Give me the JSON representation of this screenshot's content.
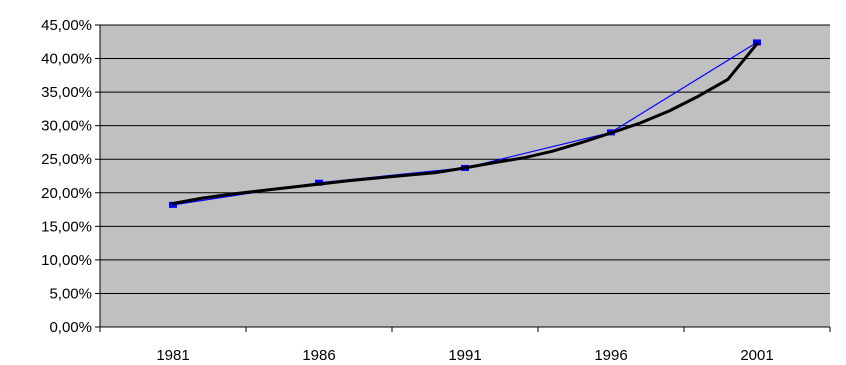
{
  "chart_data": {
    "type": "line",
    "title": "",
    "xlabel": "",
    "ylabel": "",
    "x_ticks": [
      "1981",
      "1986",
      "1991",
      "1996",
      "2001"
    ],
    "x_range": [
      1978.5,
      2003.5
    ],
    "ylim": [
      0,
      0.45
    ],
    "y_ticks": [
      "0,00%",
      "5,00%",
      "10,00%",
      "15,00%",
      "20,00%",
      "25,00%",
      "30,00%",
      "35,00%",
      "40,00%",
      "45,00%"
    ],
    "grid": true,
    "legend": "none",
    "colors": {
      "plot_background": "#c0c0c0",
      "grid": "#000000",
      "smooth_series": "#000000",
      "marker_series": "#0000ff"
    },
    "series": [
      {
        "style": "line",
        "x": [
          1981,
          1982,
          1983,
          1984,
          1985,
          1986,
          1987,
          1988,
          1989,
          1990,
          1991,
          1992,
          1993,
          1994,
          1995,
          1996,
          1997,
          1998,
          1999,
          2000,
          2001
        ],
        "values": [
          0.184,
          0.192,
          0.198,
          0.203,
          0.208,
          0.213,
          0.218,
          0.222,
          0.226,
          0.23,
          0.237,
          0.245,
          0.252,
          0.262,
          0.275,
          0.289,
          0.304,
          0.322,
          0.344,
          0.369,
          0.422
        ]
      },
      {
        "style": "line-markers",
        "x": [
          1981,
          1986,
          1991,
          1996,
          2001
        ],
        "values": [
          0.182,
          0.215,
          0.237,
          0.29,
          0.424
        ]
      }
    ]
  }
}
